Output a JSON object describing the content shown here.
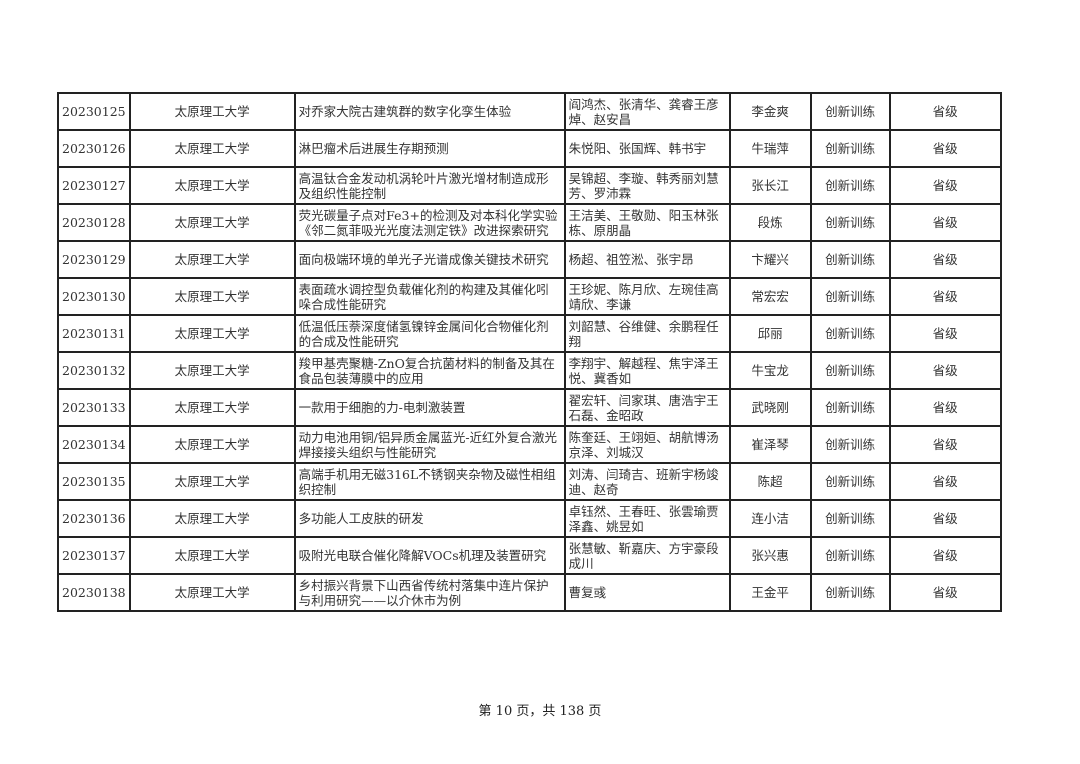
{
  "table": {
    "rows": [
      {
        "id": "20230125",
        "school": "太原理工大学",
        "project": "对乔家大院古建筑群的数字化孪生体验",
        "members": "阎鸿杰、张清华、龚睿王彦焯、赵安昌",
        "advisor": "李金爽",
        "type": "创新训练",
        "level": "省级"
      },
      {
        "id": "20230126",
        "school": "太原理工大学",
        "project": "淋巴瘤术后进展生存期预测",
        "members": "朱悦阳、张国辉、韩书宇",
        "advisor": "牛瑞萍",
        "type": "创新训练",
        "level": "省级"
      },
      {
        "id": "20230127",
        "school": "太原理工大学",
        "project": "高温钛合金发动机涡轮叶片激光增材制造成形及组织性能控制",
        "members": "吴锦超、李璇、韩秀丽刘慧芳、罗沛霖",
        "advisor": "张长江",
        "type": "创新训练",
        "level": "省级"
      },
      {
        "id": "20230128",
        "school": "太原理工大学",
        "project": "荧光碳量子点对Fe3+的检测及对本科化学实验《邻二氮菲吸光光度法测定铁》改进探索研究",
        "members": "王洁美、王敬勋、阳玉林张栋、原朋晶",
        "advisor": "段炼",
        "type": "创新训练",
        "level": "省级"
      },
      {
        "id": "20230129",
        "school": "太原理工大学",
        "project": "面向极端环境的单光子光谱成像关键技术研究",
        "members": "杨超、祖笠淞、张宇昂",
        "advisor": "卞耀兴",
        "type": "创新训练",
        "level": "省级"
      },
      {
        "id": "20230130",
        "school": "太原理工大学",
        "project": "表面疏水调控型负载催化剂的构建及其催化吲哚合成性能研究",
        "members": "王珍妮、陈月欣、左琬佳高靖欣、李谦",
        "advisor": "常宏宏",
        "type": "创新训练",
        "level": "省级"
      },
      {
        "id": "20230131",
        "school": "太原理工大学",
        "project": "低温低压萘深度储氢镍锌金属间化合物催化剂的合成及性能研究",
        "members": "刘韶慧、谷维健、余鹏程任翔",
        "advisor": "邱丽",
        "type": "创新训练",
        "level": "省级"
      },
      {
        "id": "20230132",
        "school": "太原理工大学",
        "project": "羧甲基壳聚糖-ZnO复合抗菌材料的制备及其在食品包装薄膜中的应用",
        "members": "李翔宇、解越程、焦宇泽王悦、冀香如",
        "advisor": "牛宝龙",
        "type": "创新训练",
        "level": "省级"
      },
      {
        "id": "20230133",
        "school": "太原理工大学",
        "project": "一款用于细胞的力-电刺激装置",
        "members": "翟宏轩、闫家琪、唐浩宇王石磊、金昭政",
        "advisor": "武晓刚",
        "type": "创新训练",
        "level": "省级"
      },
      {
        "id": "20230134",
        "school": "太原理工大学",
        "project": "动力电池用铜/铝异质金属蓝光-近红外复合激光焊接接头组织与性能研究",
        "members": "陈奎廷、王翊姮、胡航博汤京泽、刘城汉",
        "advisor": "崔泽琴",
        "type": "创新训练",
        "level": "省级"
      },
      {
        "id": "20230135",
        "school": "太原理工大学",
        "project": "高端手机用无磁316L不锈钢夹杂物及磁性相组织控制",
        "members": "刘涛、闫琦吉、班新宇杨竣迪、赵奇",
        "advisor": "陈超",
        "type": "创新训练",
        "level": "省级"
      },
      {
        "id": "20230136",
        "school": "太原理工大学",
        "project": "多功能人工皮肤的研发",
        "members": "卓钰然、王春旺、张雲瑜贾泽鑫、姚昱如",
        "advisor": "连小洁",
        "type": "创新训练",
        "level": "省级"
      },
      {
        "id": "20230137",
        "school": "太原理工大学",
        "project": "吸附光电联合催化降解VOCs机理及装置研究",
        "members": "张慧敏、靳嘉庆、方宇豪段成川",
        "advisor": "张兴惠",
        "type": "创新训练",
        "level": "省级"
      },
      {
        "id": "20230138",
        "school": "太原理工大学",
        "project": "乡村振兴背景下山西省传统村落集中连片保护与利用研究——以介休市为例",
        "members": "曹复彧",
        "advisor": "王金平",
        "type": "创新训练",
        "level": "省级"
      }
    ]
  },
  "footer": {
    "page_text": "第 10 页，共 138 页"
  }
}
